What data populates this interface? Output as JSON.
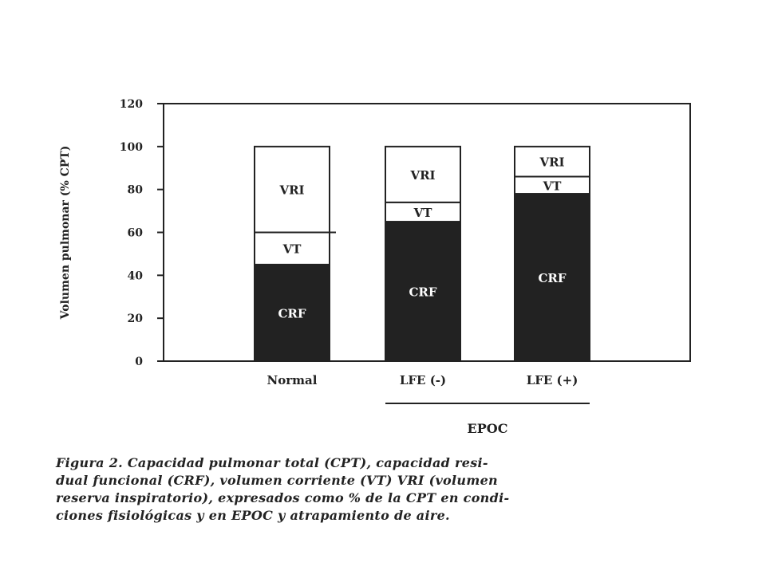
{
  "chart_data": {
    "type": "bar",
    "stacked": true,
    "title": "",
    "xlabel": "",
    "ylabel": "Volumen pulmonar (% CPT)",
    "ylim": [
      0,
      120
    ],
    "yticks": [
      0,
      20,
      40,
      60,
      80,
      100,
      120
    ],
    "grid": false,
    "categories": [
      "Normal",
      "LFE (-)",
      "LFE (+)"
    ],
    "group_annotation": {
      "label": "EPOC",
      "categories": [
        "LFE (-)",
        "LFE (+)"
      ]
    },
    "series": [
      {
        "name": "CRF",
        "values": [
          45,
          65,
          78
        ],
        "color": "#222222",
        "label_color": "#ffffff"
      },
      {
        "name": "VT",
        "values": [
          15,
          9,
          8
        ],
        "color": "#ffffff",
        "label_color": "#222222"
      },
      {
        "name": "VRI",
        "values": [
          40,
          26,
          14
        ],
        "color": "#ffffff",
        "label_color": "#222222"
      }
    ]
  },
  "caption": {
    "lines": [
      "Figura 2. Capacidad pulmonar total (CPT), capacidad resi-",
      "dual funcional (CRF), volumen corriente (VT) VRI (volumen",
      "reserva inspiratorio), expresados como % de la CPT en condi-",
      "ciones fisiológicas y en EPOC y atrapamiento de aire."
    ]
  }
}
